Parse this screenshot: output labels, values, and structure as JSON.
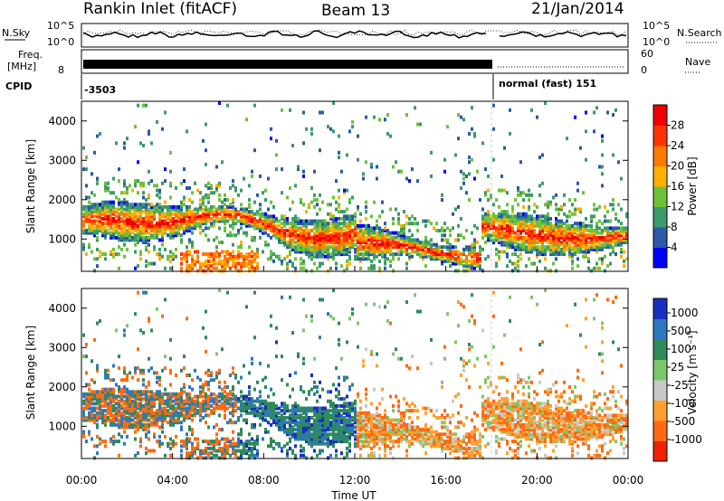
{
  "header": {
    "title": "Rankin Inlet (fitACF)",
    "beam": "Beam 13",
    "date": "21/Jan/2014"
  },
  "strip": {
    "nsky_label": "N.Sky",
    "nsky_ticks": [
      "10^5",
      "10^0"
    ],
    "nsearch_label": "N.Search",
    "nsearch_ticks": [
      "10^5",
      "10^0"
    ],
    "freq_label": "Freq.",
    "freq_unit": "[MHz]",
    "freq_ticks": [
      "8"
    ],
    "nave_label": "Nave",
    "nave_ticks": [
      "60",
      "0"
    ],
    "cpid_label": "CPID",
    "cpid_values": [
      "-3503",
      "normal (fast) 151"
    ]
  },
  "chart_data": [
    {
      "type": "heatmap",
      "name": "power-panel",
      "ylabel": "Slant Range [km]",
      "yticks": [
        "1000",
        "2000",
        "3000",
        "4000"
      ],
      "colorbar_label": "Power [dB]",
      "colorbar_ticks": [
        "4",
        "8",
        "12",
        "16",
        "20",
        "24",
        "28"
      ],
      "colorbar_colors": [
        "#0000ff",
        "#2a5aa8",
        "#3d9a6a",
        "#6ec23a",
        "#ffb000",
        "#ff7a00",
        "#ff3300",
        "#ee0000"
      ],
      "xlim": [
        "00:00",
        "24:00"
      ],
      "ylim": [
        180,
        4500
      ]
    },
    {
      "type": "heatmap",
      "name": "velocity-panel",
      "ylabel": "Slant Range [km]",
      "yticks": [
        "1000",
        "2000",
        "3000",
        "4000"
      ],
      "xlabel": "Time UT",
      "xticks": [
        "00:00",
        "04:00",
        "08:00",
        "12:00",
        "16:00",
        "20:00",
        "00:00"
      ],
      "colorbar_label": "Velocity [m s⁻¹]",
      "colorbar_ticks": [
        "1000",
        "500",
        "100",
        "25",
        "-25",
        "-100",
        "-500",
        "-1000"
      ],
      "colorbar_colors": [
        "#1830c0",
        "#2e78c0",
        "#2f8a5a",
        "#7cc86a",
        "#c8c8c8",
        "#ffa030",
        "#ff6a10",
        "#f02000"
      ],
      "xlim": [
        "00:00",
        "24:00"
      ],
      "ylim": [
        180,
        4500
      ]
    }
  ]
}
